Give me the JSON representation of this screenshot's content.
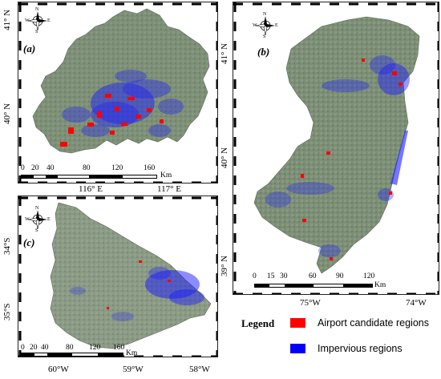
{
  "panels": {
    "a": {
      "label": "(a)",
      "lat_labels": [
        "41° N",
        "40° N"
      ],
      "lon_labels": [
        "116° E",
        "117° E"
      ],
      "scale_ticks": [
        "0",
        "20",
        "40",
        "80",
        "120",
        "160"
      ],
      "scale_unit": "Km"
    },
    "b": {
      "label": "(b)",
      "lat_labels": [
        "41° N",
        "40° N",
        "39° N"
      ],
      "lon_labels": [
        "75°W",
        "74°W"
      ],
      "scale_ticks": [
        "0",
        "15",
        "30",
        "60",
        "90",
        "120"
      ],
      "scale_unit": "Km"
    },
    "c": {
      "label": "(c)",
      "lat_labels": [
        "34°S",
        "35°S"
      ],
      "lon_labels": [
        "60°W",
        "59°W",
        "58°W"
      ],
      "scale_ticks": [
        "0",
        "20",
        "40",
        "80",
        "120",
        "160"
      ],
      "scale_unit": "Km"
    }
  },
  "compass": {
    "n": "N",
    "s": "S",
    "e": "E",
    "w": "W",
    "icon": "compass-rose-icon"
  },
  "legend": {
    "title": "Legend",
    "items": [
      {
        "label": "Airport candidate regions",
        "color": "#ff0000"
      },
      {
        "label": "Impervious regions",
        "color": "#0000ff"
      }
    ]
  },
  "colors": {
    "terrain": "#7c8f76",
    "terrain_dark": "#6a7b66",
    "frame": "#222222"
  }
}
